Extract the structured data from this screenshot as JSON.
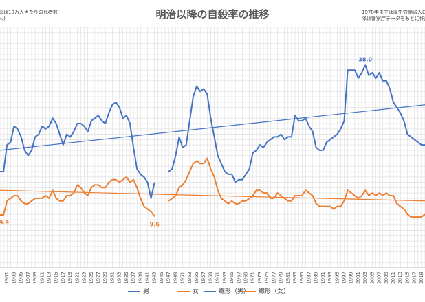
{
  "title": "明治以降の自殺率の推移",
  "note_left": [
    "率は10万人当たりの死者数",
    "人)"
  ],
  "note_right": [
    "1978年までは厚生労働省人口動態統",
    "降は警察庁データをもとに作成"
  ],
  "legend": [
    {
      "label": "男",
      "color": "#4472C4"
    },
    {
      "label": "女",
      "color": "#ED7D31"
    },
    {
      "label": "線形（男）",
      "color": "#4472C4"
    },
    {
      "label": "線形（女）",
      "color": "#ED7D31"
    }
  ],
  "chart_data": {
    "type": "line",
    "title": "明治以降の自殺率の推移",
    "xlabel": "",
    "ylabel": "",
    "ylim": [
      0,
      45
    ],
    "xlim": [
      1899,
      2020
    ],
    "x_tick_labels": [
      "1901",
      "1903",
      "1905",
      "1907",
      "1909",
      "1911",
      "1913",
      "1915",
      "1917",
      "1919",
      "1921",
      "1923",
      "1925",
      "1927",
      "1929",
      "1931",
      "1933",
      "1935",
      "1937",
      "1939",
      "1941",
      "1943",
      "1945",
      "1947",
      "1949",
      "1951",
      "1953",
      "1955",
      "1957",
      "1959",
      "1961",
      "1963",
      "1965",
      "1967",
      "1969",
      "1971",
      "1973",
      "1975",
      "1977",
      "1979",
      "1981",
      "1983",
      "1985",
      "1987",
      "1989",
      "1991",
      "1993",
      "1995",
      "1997",
      "1999",
      "2001",
      "2003",
      "2005",
      "2007",
      "2009",
      "2011",
      "2013",
      "2015",
      "2017",
      "2019"
    ],
    "grid": true,
    "legend_position": "bottom",
    "annotations": [
      {
        "text": "38.0",
        "series": "男",
        "x": 2003
      },
      {
        "text": "9.9",
        "series": "女",
        "x": 1899
      },
      {
        "text": "9.6",
        "series": "女",
        "x": 1943
      }
    ],
    "series": [
      {
        "name": "男",
        "color": "#4472C4",
        "segments": [
          {
            "x": [
              1899,
              1900,
              1901,
              1902,
              1903,
              1904,
              1905,
              1906,
              1907,
              1908,
              1909,
              1910,
              1911,
              1912,
              1913,
              1914,
              1915,
              1916,
              1917,
              1918,
              1919,
              1920,
              1921,
              1922,
              1923,
              1924,
              1925,
              1926,
              1927,
              1928,
              1929,
              1930,
              1931,
              1932,
              1933,
              1934,
              1935,
              1936,
              1937,
              1938,
              1939,
              1940,
              1941,
              1942,
              1943
            ],
            "y": [
              18.0,
              18.0,
              23.0,
              23.5,
              26.5,
              26.0,
              24.5,
              22.0,
              21.0,
              22.0,
              24.5,
              25.0,
              26.5,
              26.0,
              26.5,
              28.0,
              27.0,
              25.0,
              23.0,
              25.0,
              24.5,
              25.5,
              27.0,
              27.0,
              26.5,
              25.5,
              27.5,
              28.0,
              28.5,
              27.5,
              27.0,
              29.0,
              30.5,
              31.0,
              30.0,
              28.0,
              28.5,
              27.0,
              22.5,
              18.5,
              17.5,
              17.0,
              16.0,
              13.0,
              16.0
            ]
          },
          {
            "x": [
              1947,
              1948,
              1949,
              1950,
              1951,
              1952,
              1953,
              1954,
              1955,
              1956,
              1957,
              1958,
              1959,
              1960,
              1961,
              1962,
              1963,
              1964,
              1965,
              1966,
              1967,
              1968,
              1969,
              1970,
              1971,
              1972,
              1973,
              1974,
              1975,
              1976,
              1977,
              1978,
              1979,
              1980,
              1981,
              1982,
              1983,
              1984,
              1985,
              1986,
              1987,
              1988,
              1989,
              1990,
              1991,
              1992,
              1993,
              1994,
              1995,
              1996,
              1997,
              1998,
              1999,
              2000,
              2001,
              2002,
              2003,
              2004,
              2005,
              2006,
              2007,
              2008,
              2009,
              2010,
              2011,
              2012,
              2013,
              2014,
              2015,
              2016,
              2017,
              2018,
              2019,
              2020
            ],
            "y": [
              18.0,
              18.5,
              21.0,
              24.5,
              22.5,
              23.0,
              27.5,
              32.0,
              34.0,
              33.0,
              33.5,
              32.5,
              28.0,
              24.5,
              21.0,
              19.5,
              18.0,
              17.5,
              17.5,
              16.0,
              16.5,
              16.5,
              17.5,
              18.5,
              21.5,
              22.0,
              23.0,
              22.5,
              23.5,
              24.0,
              24.5,
              24.5,
              25.0,
              24.0,
              24.5,
              24.5,
              28.5,
              27.5,
              27.5,
              28.0,
              26.5,
              25.5,
              22.5,
              22.0,
              22.0,
              23.5,
              24.0,
              24.5,
              25.0,
              26.0,
              27.5,
              37.0,
              37.0,
              37.0,
              35.5,
              36.5,
              38.0,
              36.0,
              36.5,
              35.5,
              36.5,
              35.0,
              35.0,
              33.5,
              31.0,
              30.0,
              29.0,
              27.5,
              25.0,
              24.5,
              24.0,
              23.5,
              23.0,
              23.0
            ]
          }
        ]
      },
      {
        "name": "女",
        "color": "#ED7D31",
        "segments": [
          {
            "x": [
              1899,
              1900,
              1901,
              1902,
              1903,
              1904,
              1905,
              1906,
              1907,
              1908,
              1909,
              1910,
              1911,
              1912,
              1913,
              1914,
              1915,
              1916,
              1917,
              1918,
              1919,
              1920,
              1921,
              1922,
              1923,
              1924,
              1925,
              1926,
              1927,
              1928,
              1929,
              1930,
              1931,
              1932,
              1933,
              1934,
              1935,
              1936,
              1937,
              1938,
              1939,
              1940,
              1941,
              1942,
              1943
            ],
            "y": [
              9.9,
              9.9,
              12.5,
              13.0,
              13.5,
              13.5,
              12.5,
              12.0,
              12.0,
              12.5,
              13.0,
              13.0,
              13.0,
              13.5,
              13.0,
              14.5,
              13.0,
              12.5,
              12.5,
              13.5,
              13.5,
              14.0,
              15.5,
              15.0,
              14.0,
              13.5,
              15.0,
              15.5,
              15.5,
              15.0,
              15.0,
              16.0,
              16.5,
              16.5,
              16.0,
              16.5,
              17.0,
              16.0,
              16.5,
              15.0,
              13.0,
              11.5,
              11.0,
              10.5,
              9.6
            ]
          },
          {
            "x": [
              1947,
              1948,
              1949,
              1950,
              1951,
              1952,
              1953,
              1954,
              1955,
              1956,
              1957,
              1958,
              1959,
              1960,
              1961,
              1962,
              1963,
              1964,
              1965,
              1966,
              1967,
              1968,
              1969,
              1970,
              1971,
              1972,
              1973,
              1974,
              1975,
              1976,
              1977,
              1978,
              1979,
              1980,
              1981,
              1982,
              1983,
              1984,
              1985,
              1986,
              1987,
              1988,
              1989,
              1990,
              1991,
              1992,
              1993,
              1994,
              1995,
              1996,
              1997,
              1998,
              1999,
              2000,
              2001,
              2002,
              2003,
              2004,
              2005,
              2006,
              2007,
              2008,
              2009,
              2010,
              2011,
              2012,
              2013,
              2014,
              2015,
              2016,
              2017,
              2018,
              2019,
              2020
            ],
            "y": [
              12.5,
              13.0,
              13.5,
              15.0,
              15.5,
              16.5,
              18.0,
              19.5,
              20.0,
              19.5,
              19.5,
              20.5,
              18.5,
              17.0,
              14.5,
              13.0,
              12.5,
              12.0,
              12.5,
              12.0,
              12.0,
              12.5,
              12.5,
              13.0,
              13.5,
              14.5,
              14.5,
              14.0,
              14.0,
              13.0,
              13.0,
              14.0,
              13.5,
              13.0,
              12.5,
              12.5,
              13.5,
              13.5,
              13.5,
              14.5,
              14.0,
              13.5,
              12.0,
              11.5,
              11.5,
              11.5,
              11.5,
              11.0,
              11.5,
              11.5,
              12.5,
              14.5,
              14.0,
              13.5,
              13.0,
              13.5,
              14.5,
              13.5,
              14.0,
              13.5,
              14.0,
              13.5,
              14.0,
              13.5,
              13.5,
              12.0,
              11.5,
              11.0,
              10.0,
              9.5,
              9.5,
              9.5,
              9.5,
              10.0
            ]
          }
        ]
      },
      {
        "name": "線形（男）",
        "color": "#4472C4",
        "trend": true,
        "x": [
          1899,
          2020
        ],
        "y": [
          22.0,
          30.5
        ]
      },
      {
        "name": "線形（女）",
        "color": "#ED7D31",
        "trend": true,
        "x": [
          1899,
          2020
        ],
        "y": [
          14.5,
          12.5
        ]
      }
    ]
  }
}
